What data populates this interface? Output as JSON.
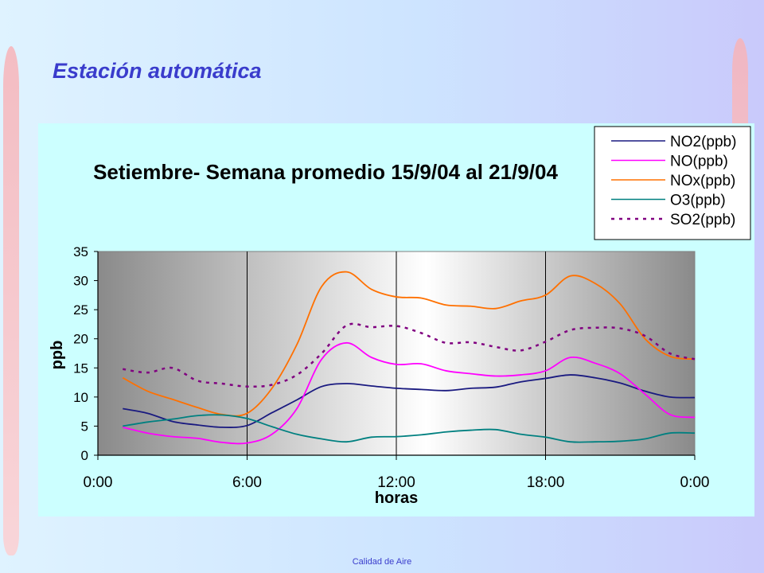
{
  "slide": {
    "title": "Estación automática",
    "footer": "Calidad de Aire"
  },
  "chart_data": {
    "type": "line",
    "title": "Setiembre- Semana promedio 15/9/04 al 21/9/04",
    "xlabel": "horas",
    "ylabel": "ppb",
    "ylim": [
      0,
      35
    ],
    "xlim": [
      0,
      24
    ],
    "yticks": [
      0,
      5,
      10,
      15,
      20,
      25,
      30,
      35
    ],
    "xticks": [
      0,
      6,
      12,
      18,
      24
    ],
    "xtick_labels": [
      "0:00",
      "6:00",
      "12:00",
      "18:00",
      "0:00"
    ],
    "grid": "vertical lines at 6-hour ticks",
    "legend_position": "top-right",
    "x": [
      1,
      2,
      3,
      4,
      5,
      6,
      7,
      8,
      9,
      10,
      11,
      12,
      13,
      14,
      15,
      16,
      17,
      18,
      19,
      20,
      21,
      22,
      23,
      24
    ],
    "series": [
      {
        "name": "NO2(ppb)",
        "color": "#1a1a80",
        "dash": "solid",
        "values": [
          8.0,
          7.2,
          5.8,
          5.2,
          4.8,
          5.1,
          7.3,
          9.5,
          11.8,
          12.3,
          11.9,
          11.5,
          11.3,
          11.1,
          11.5,
          11.7,
          12.6,
          13.2,
          13.8,
          13.3,
          12.4,
          11.0,
          10.0,
          9.9
        ]
      },
      {
        "name": "NO(ppb)",
        "color": "#ff00ff",
        "dash": "solid",
        "values": [
          4.8,
          3.8,
          3.2,
          2.9,
          2.2,
          2.1,
          3.6,
          8.0,
          16.5,
          19.3,
          16.8,
          15.6,
          15.7,
          14.5,
          14.0,
          13.6,
          13.8,
          14.5,
          16.8,
          15.8,
          14.0,
          10.5,
          7.0,
          6.5
        ]
      },
      {
        "name": "NOx(ppb)",
        "color": "#ff7000",
        "dash": "solid",
        "values": [
          13.3,
          11.0,
          9.6,
          8.2,
          7.0,
          7.2,
          11.5,
          19.0,
          29.0,
          31.5,
          28.5,
          27.2,
          27.0,
          25.8,
          25.6,
          25.2,
          26.5,
          27.5,
          30.8,
          29.5,
          26.0,
          20.0,
          17.0,
          16.5
        ]
      },
      {
        "name": "O3(ppb)",
        "color": "#008080",
        "dash": "solid",
        "values": [
          5.0,
          5.7,
          6.2,
          6.8,
          6.9,
          6.3,
          4.9,
          3.6,
          2.8,
          2.3,
          3.1,
          3.2,
          3.5,
          4.0,
          4.3,
          4.4,
          3.6,
          3.1,
          2.3,
          2.3,
          2.4,
          2.8,
          3.8,
          3.8
        ]
      },
      {
        "name": "SO2(ppb)",
        "color": "#800080",
        "dash": "dotted",
        "values": [
          14.8,
          14.2,
          15.0,
          12.8,
          12.3,
          11.8,
          12.1,
          13.8,
          17.5,
          22.3,
          22.0,
          22.2,
          21.0,
          19.3,
          19.4,
          18.6,
          18.0,
          19.5,
          21.5,
          21.9,
          21.8,
          20.5,
          17.5,
          16.5
        ]
      }
    ]
  }
}
